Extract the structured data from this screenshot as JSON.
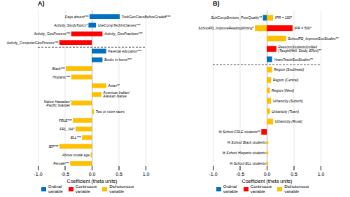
{
  "chart_data": [
    {
      "type": "bar",
      "orientation": "horizontal",
      "title": "A)",
      "xlabel": "Coefficient (theta units)",
      "xlim": [
        -1.0,
        1.0
      ],
      "xticks": [
        {
          "value": -1.0,
          "label": "-1.0"
        },
        {
          "value": -0.5,
          "label": "-0.5"
        },
        {
          "value": 0.0,
          "label": "0.0"
        },
        {
          "value": 0.5,
          "label": "0.5"
        },
        {
          "value": 1.0,
          "label": "1.0"
        }
      ],
      "grid": true,
      "tick_labels": "x",
      "legend": "bottom",
      "series": [
        {
          "name": "Ordinal\nvariable",
          "color": "#0070C0"
        },
        {
          "name": "Continuous\nvariable",
          "color": "#FF0000"
        },
        {
          "name": "Dichotomous\nvariable",
          "color": "#FFC000"
        }
      ],
      "rows": [
        {
          "left": {
            "label": "Days absent***",
            "value": -0.04,
            "color": "#0070C0"
          },
          "right": {
            "label": "TookGeoClassBeforeGrade8***",
            "value": 0.52,
            "color": "#0070C0"
          }
        },
        {
          "left": {
            "label": "Activity_StudyTopics*",
            "value": -0.06,
            "color": "#0070C0"
          },
          "right": {
            "label": "UseCompTechInClasses***",
            "value": 0.08,
            "color": "#0070C0"
          }
        },
        {
          "left": {
            "label": "Activity_GeoProcess***",
            "value": -0.38,
            "color": "#FF0000"
          },
          "right": {
            "label": "Activity_GeoPractices***",
            "value": 0.2,
            "color": "#FF0000"
          }
        },
        {
          "left": {
            "label": "Activity_ComputerGeoProcess***",
            "value": -0.6,
            "color": "#FF0000"
          },
          "right": null
        },
        {
          "left": null,
          "right": {
            "label": "Parental education***",
            "value": 0.27,
            "color": "#0070C0"
          }
        },
        {
          "left": null,
          "right": {
            "label": "Books in home***",
            "value": 0.2,
            "color": "#0070C0"
          }
        },
        {
          "left": {
            "label": "Black***",
            "value": -0.48,
            "color": "#FFC000"
          },
          "right": null
        },
        {
          "left": {
            "label": "Hispanic***",
            "value": -0.38,
            "color": "#FFC000"
          },
          "right": null
        },
        {
          "left": null,
          "right": {
            "label": "Asian**",
            "value": 0.27,
            "color": "#FFC000"
          }
        },
        {
          "left": null,
          "right": {
            "label": "American Indian/\nAlaskan Native",
            "value": 0.18,
            "color": "#FFC000"
          }
        },
        {
          "left": {
            "label": "Native Hawaiian/\nPacific Islander",
            "value": -0.38,
            "color": "#FFC000"
          },
          "right": null
        },
        {
          "left": null,
          "right": {
            "label": "Two or more races",
            "value": 0.04,
            "color": "#FFC000"
          }
        },
        {
          "left": {
            "label": "FRLE***",
            "value": -0.35,
            "color": "#FFC000"
          },
          "right": null
        },
        {
          "left": {
            "label": "FRL_NA*",
            "value": -0.3,
            "color": "#FFC000"
          },
          "right": null
        },
        {
          "left": {
            "label": "ELL***",
            "value": -0.18,
            "color": "#FFC000"
          },
          "right": null
        },
        {
          "left": {
            "label": "IEP***",
            "value": -0.6,
            "color": "#FFC000"
          },
          "right": null
        },
        {
          "left": {
            "label": "Above modal age",
            "value": -0.02,
            "color": "#FFC000"
          },
          "right": null
        },
        {
          "left": {
            "label": "Female***",
            "value": -0.4,
            "color": "#FFC000"
          },
          "right": null
        }
      ],
      "dashed_after_row": 3
    },
    {
      "type": "bar",
      "orientation": "horizontal",
      "title": "B)",
      "xlabel": "Coefficient (theta units)",
      "xlim": [
        -1.0,
        1.0
      ],
      "xticks": [
        {
          "value": -1.0,
          "label": "-1.0"
        },
        {
          "value": -0.5,
          "label": "-0.5"
        },
        {
          "value": 0.0,
          "label": "0.0"
        },
        {
          "value": 0.5,
          "label": "0.5"
        },
        {
          "value": 1.0,
          "label": "1.0"
        }
      ],
      "grid": true,
      "tick_labels": "x",
      "legend": "bottom",
      "series": [
        {
          "name": "Ordinal\nvariable",
          "color": "#0070C0"
        },
        {
          "name": "Continuous\nvariable",
          "color": "#FF0000"
        },
        {
          "name": "Dichotomous\nvariable",
          "color": "#FFC000"
        }
      ],
      "rows": [
        {
          "left": {
            "label": "SchCompDevices_PoorQuality**",
            "value": -0.07,
            "color": "#0070C0"
          },
          "right": {
            "label": "IPR = 100*",
            "value": 0.12,
            "color": "#FFC000"
          }
        },
        {
          "left": {
            "label": "SchoolPD_ImproveReadingWriting*",
            "value": -0.22,
            "color": "#FFC000"
          },
          "right": {
            "label": "IPR = 500*",
            "value": 0.48,
            "color": "#FF0000"
          }
        },
        {
          "left": null,
          "right": {
            "label": "SchoolPD_ImproveSocStudies**",
            "value": 0.36,
            "color": "#FFC000"
          }
        },
        {
          "left": null,
          "right": {
            "label": "ReasonsStudentsDoWell\n(TaughtWell, Study, Effort)**",
            "value": 0.18,
            "color": "#FF0000"
          }
        },
        {
          "left": null,
          "right": {
            "label": "YearsTeachSocStudies**",
            "value": 0.1,
            "color": "#0070C0"
          }
        },
        {
          "left": null,
          "right": {
            "label": "Region (Southeast)",
            "value": 0.1,
            "color": "#FFC000"
          }
        },
        {
          "left": null,
          "right": {
            "label": "Region (Central)",
            "value": 0.08,
            "color": "#FFC000"
          }
        },
        {
          "left": null,
          "right": {
            "label": "Region (West)",
            "value": 0.06,
            "color": "#FFC000"
          }
        },
        {
          "left": null,
          "right": {
            "label": "Urbanicity (Suburb)",
            "value": 0.08,
            "color": "#FFC000"
          }
        },
        {
          "left": null,
          "right": {
            "label": "Urbanicity (Town)",
            "value": 0.06,
            "color": "#FFC000"
          }
        },
        {
          "left": null,
          "right": {
            "label": "Urbanicity (Rural)",
            "value": 0.12,
            "color": "#FFC000"
          }
        },
        {
          "left": {
            "label": "% School FRLE students**",
            "value": -0.1,
            "color": "#FF0000"
          },
          "right": null
        },
        {
          "left": {
            "label": "% School Black students",
            "value": 0.0,
            "color": "#FFC000"
          },
          "right": null
        },
        {
          "left": {
            "label": "% School Hispanic students",
            "value": 0.0,
            "color": "#FFC000"
          },
          "right": null
        },
        {
          "left": {
            "label": "% School ELL students",
            "value": 0.0,
            "color": "#FFC000"
          },
          "right": null
        }
      ],
      "dashed_after_row": 4
    }
  ]
}
